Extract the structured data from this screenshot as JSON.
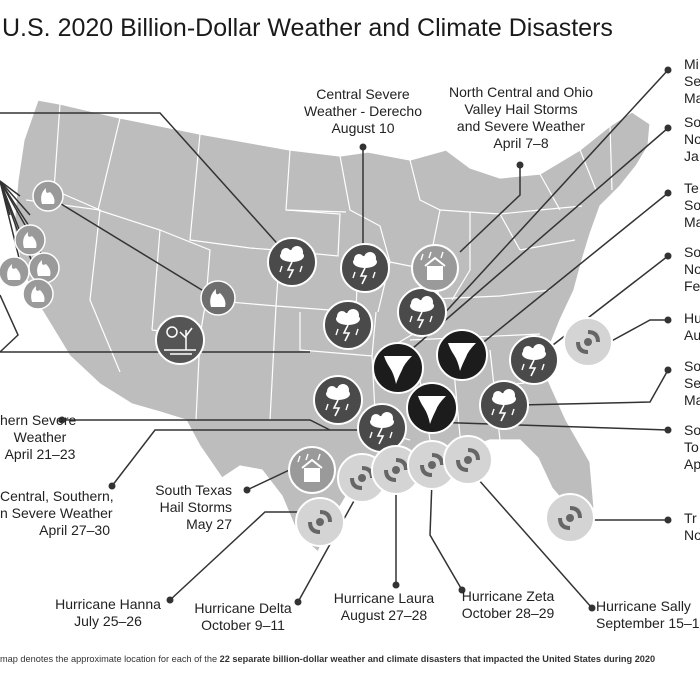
{
  "title": "U.S. 2020 Billion-Dollar Weather and Climate Disasters",
  "footer": {
    "before": "map denotes the approximate location for each of the ",
    "bold": "22 separate billion-dollar weather and climate disasters that impacted the United States during 2020",
    "after": ""
  },
  "events": {
    "derecho": [
      "Central Severe",
      "Weather - Derecho",
      "August 10"
    ],
    "ohio_hail": [
      "North Central and Ohio",
      "Valley Hail Storms",
      "and Severe Weather",
      "April 7–8"
    ],
    "tr1": [
      "Mi",
      "Se",
      "Ma"
    ],
    "tr2": [
      "So",
      "No",
      "Ja"
    ],
    "tr3": [
      "Te",
      "So",
      "Ma"
    ],
    "tr4": [
      "So",
      "No",
      "Fe"
    ],
    "tr5": [
      "Hu",
      "Au"
    ],
    "tr6": [
      "So",
      "Se",
      "Ma"
    ],
    "tr7": [
      "So",
      "To",
      "Ap"
    ],
    "tr8": [
      "Tr",
      "No"
    ],
    "southern_severe": [
      "hern Severe",
      "Weather",
      "April 21–23"
    ],
    "central_southern": [
      "Central, Southern,",
      "n Severe Weather",
      "April 27–30"
    ],
    "south_texas": [
      "South Texas",
      "Hail Storms",
      "May 27"
    ],
    "hanna": [
      "Hurricane Hanna",
      "July 25–26"
    ],
    "delta": [
      "Hurricane Delta",
      "October 9–11"
    ],
    "laura": [
      "Hurricane Laura",
      "August 27–28"
    ],
    "zeta": [
      "Hurricane Zeta",
      "October 28–29"
    ],
    "sally": [
      "Hurricane Sally",
      "September 15–1"
    ]
  },
  "icon_legend": {
    "severe": "severe-storm-icon",
    "hail": "hail-storm-icon",
    "tornado": "tornado-icon",
    "hurricane": "hurricane-icon",
    "wildfire": "wildfire-icon",
    "drought": "drought-icon"
  },
  "colors": {
    "map_fill": "#bdbdbd",
    "state_lines": "#ffffff",
    "icon_dark": "#4a4a4a",
    "icon_black": "#1c1c1c",
    "hurricane_fill": "#d4d4d4",
    "leader": "#333333"
  }
}
